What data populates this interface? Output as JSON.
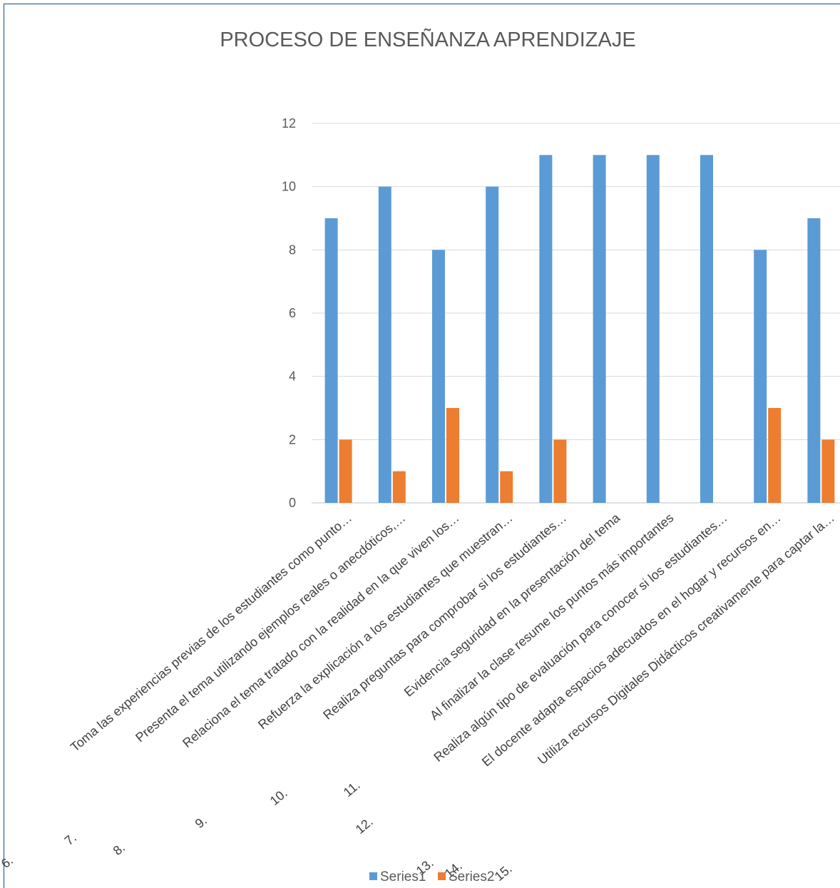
{
  "chart_data": {
    "type": "bar",
    "title": "PROCESO DE ENSEÑANZA APRENDIZAJE",
    "xlabel": "",
    "ylabel": "",
    "ylim": [
      0,
      12
    ],
    "yticks": [
      0,
      2,
      4,
      6,
      8,
      10,
      12
    ],
    "grid": true,
    "legend": "bottom",
    "categories": [
      "Toma las experiencias previas de los estudiantes como punto…",
      "Presenta el tema utilizando ejemplos reales o anecdóticos,…",
      "Relaciona el tema tratado con la realidad en la que viven los…",
      "Refuerza la explicación a los estudiantes que muestran…",
      "Realiza preguntas para comprobar si los estudiantes…",
      "Evidencia seguridad en la presentación del tema",
      "Al finalizar la clase resume los puntos más importantes",
      "Realiza algún tipo de evaluación para conocer si los estudiantes…",
      "El docente adapta espacios adecuados en el hogar y recursos en…",
      "Utiliza recursos Digitales Didácticos creativamente para captar la…"
    ],
    "series": [
      {
        "name": "Series1",
        "color": "#5b9bd5",
        "values": [
          9,
          10,
          8,
          10,
          11,
          11,
          11,
          11,
          8,
          9
        ]
      },
      {
        "name": "Series2",
        "color": "#ed7d31",
        "values": [
          2,
          1,
          3,
          1,
          2,
          0,
          0,
          0,
          3,
          2
        ]
      }
    ],
    "stray_numbers": [
      "6.",
      "7.",
      "8.",
      "9.",
      "10.",
      "11.",
      "12.",
      "13.",
      "14.",
      "15."
    ]
  }
}
